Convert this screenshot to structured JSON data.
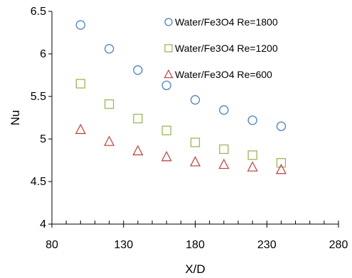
{
  "chart_data": {
    "type": "scatter",
    "title": "",
    "xlabel": "X/D",
    "ylabel": "Nu",
    "xlim": [
      80,
      280
    ],
    "ylim": [
      4,
      6.5
    ],
    "xticks": [
      80,
      130,
      180,
      230,
      280
    ],
    "yticks": [
      4,
      4.5,
      5,
      5.5,
      6,
      6.5
    ],
    "xtick_labels": [
      "80",
      "130",
      "180",
      "230",
      "280"
    ],
    "ytick_labels": [
      "4",
      "4.5",
      "5",
      "5.5",
      "6",
      "6.5"
    ],
    "grid": false,
    "legend_position": "top-right",
    "series": [
      {
        "name": "Water/Fe3O4 Re=1800",
        "marker": "circle",
        "color": "#4a7ebb",
        "x": [
          100,
          120,
          140,
          160,
          180,
          200,
          220,
          240
        ],
        "y": [
          6.34,
          6.06,
          5.81,
          5.63,
          5.46,
          5.34,
          5.22,
          5.15
        ]
      },
      {
        "name": "Water/Fe3O4 Re=1200",
        "marker": "square",
        "color": "#98b954",
        "x": [
          100,
          120,
          140,
          160,
          180,
          200,
          220,
          240
        ],
        "y": [
          5.65,
          5.41,
          5.24,
          5.1,
          4.96,
          4.88,
          4.81,
          4.72
        ]
      },
      {
        "name": "Water/Fe3O4 Re=600",
        "marker": "triangle",
        "color": "#be4b48",
        "x": [
          100,
          120,
          140,
          160,
          180,
          200,
          220,
          240
        ],
        "y": [
          5.11,
          4.97,
          4.86,
          4.79,
          4.73,
          4.7,
          4.67,
          4.64
        ]
      }
    ]
  }
}
